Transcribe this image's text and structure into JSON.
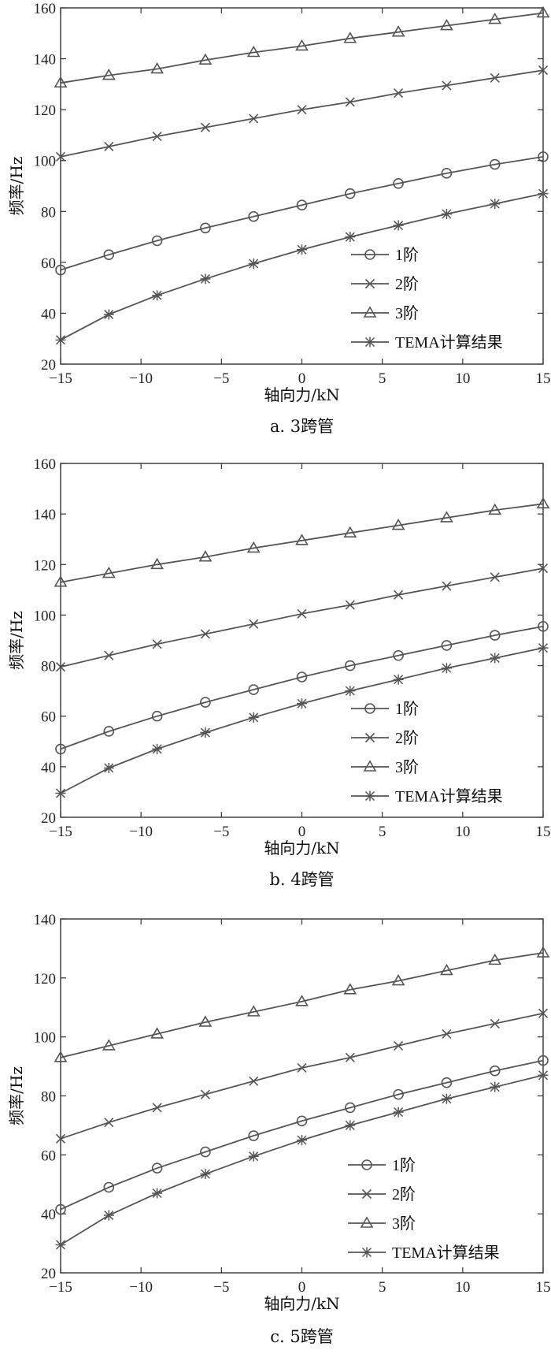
{
  "colors": {
    "line": "#555555",
    "frame": "#333333",
    "background": "#ffffff"
  },
  "chart_data": [
    {
      "type": "line",
      "caption": "a. 3跨管",
      "xlabel": "轴向力/kN",
      "ylabel": "频率/Hz",
      "xlim": [
        -15,
        15
      ],
      "ylim": [
        20,
        160
      ],
      "xticks": [
        -15,
        -10,
        -5,
        0,
        5,
        10,
        15
      ],
      "yticks": [
        20,
        40,
        60,
        80,
        100,
        120,
        140,
        160
      ],
      "xtick_labels": [
        "−15",
        "−10",
        "−5",
        "0",
        "5",
        "10",
        "15"
      ],
      "ytick_labels": [
        "20",
        "40",
        "60",
        "80",
        "100",
        "120",
        "140",
        "160"
      ],
      "grid": false,
      "legend_position": "lower-right",
      "x": [
        -15,
        -12,
        -9,
        -6,
        -3,
        0,
        3,
        6,
        9,
        12,
        15
      ],
      "series": [
        {
          "name": "1阶",
          "marker": "circle",
          "values": [
            57,
            63,
            68.5,
            73.5,
            78,
            82.5,
            87,
            91,
            95,
            98.5,
            101.5
          ]
        },
        {
          "name": "2阶",
          "marker": "x",
          "values": [
            101.5,
            105.5,
            109.5,
            113,
            116.5,
            120,
            123,
            126.5,
            129.5,
            132.5,
            135.5
          ]
        },
        {
          "name": "3阶",
          "marker": "triangle",
          "values": [
            130.5,
            133.5,
            136,
            139.5,
            142.5,
            145,
            148,
            150.5,
            153,
            155.5,
            158
          ]
        },
        {
          "name": "TEMA计算结果",
          "marker": "star",
          "values": [
            29.5,
            39.5,
            47,
            53.5,
            59.5,
            65,
            70,
            74.5,
            79,
            83,
            87
          ]
        }
      ]
    },
    {
      "type": "line",
      "caption": "b. 4跨管",
      "xlabel": "轴向力/kN",
      "ylabel": "频率/Hz",
      "xlim": [
        -15,
        15
      ],
      "ylim": [
        20,
        160
      ],
      "xticks": [
        -15,
        -10,
        -5,
        0,
        5,
        10,
        15
      ],
      "yticks": [
        20,
        40,
        60,
        80,
        100,
        120,
        140,
        160
      ],
      "xtick_labels": [
        "−15",
        "−10",
        "−5",
        "0",
        "5",
        "10",
        "15"
      ],
      "ytick_labels": [
        "20",
        "40",
        "60",
        "80",
        "100",
        "120",
        "140",
        "160"
      ],
      "grid": false,
      "legend_position": "lower-right",
      "x": [
        -15,
        -12,
        -9,
        -6,
        -3,
        0,
        3,
        6,
        9,
        12,
        15
      ],
      "series": [
        {
          "name": "1阶",
          "marker": "circle",
          "values": [
            47,
            54,
            60,
            65.5,
            70.5,
            75.5,
            80,
            84,
            88,
            92,
            95.5
          ]
        },
        {
          "name": "2阶",
          "marker": "x",
          "values": [
            79.5,
            84,
            88.5,
            92.5,
            96.5,
            100.5,
            104,
            108,
            111.5,
            115,
            118.5
          ]
        },
        {
          "name": "3阶",
          "marker": "triangle",
          "values": [
            113,
            116.5,
            120,
            123,
            126.5,
            129.5,
            132.5,
            135.5,
            138.5,
            141.5,
            144
          ]
        },
        {
          "name": "TEMA计算结果",
          "marker": "star",
          "values": [
            29.5,
            39.5,
            47,
            53.5,
            59.5,
            65,
            70,
            74.5,
            79,
            83,
            87
          ]
        }
      ]
    },
    {
      "type": "line",
      "caption": "c. 5跨管",
      "xlabel": "轴向力/kN",
      "ylabel": "频率/Hz",
      "xlim": [
        -15,
        15
      ],
      "ylim": [
        20,
        140
      ],
      "xticks": [
        -15,
        -10,
        -5,
        0,
        5,
        10,
        15
      ],
      "yticks": [
        20,
        40,
        60,
        80,
        100,
        120,
        140
      ],
      "xtick_labels": [
        "−15",
        "−10",
        "−5",
        "0",
        "5",
        "10",
        "15"
      ],
      "ytick_labels": [
        "20",
        "40",
        "60",
        "80",
        "100",
        "120",
        "140"
      ],
      "grid": false,
      "legend_position": "lower-right",
      "x": [
        -15,
        -12,
        -9,
        -6,
        -3,
        0,
        3,
        6,
        9,
        12,
        15
      ],
      "series": [
        {
          "name": "1阶",
          "marker": "circle",
          "values": [
            41.5,
            49,
            55.5,
            61,
            66.5,
            71.5,
            76,
            80.5,
            84.5,
            88.5,
            92
          ]
        },
        {
          "name": "2阶",
          "marker": "x",
          "values": [
            65.5,
            71,
            76,
            80.5,
            85,
            89.5,
            93,
            97,
            101,
            104.5,
            108
          ]
        },
        {
          "name": "3阶",
          "marker": "triangle",
          "values": [
            93,
            97,
            101,
            105,
            108.5,
            112,
            116,
            119,
            122.5,
            126,
            128.5
          ]
        },
        {
          "name": "TEMA计算结果",
          "marker": "star",
          "values": [
            29.5,
            39.5,
            47,
            53.5,
            59.5,
            65,
            70,
            74.5,
            79,
            83,
            87
          ]
        }
      ]
    }
  ]
}
